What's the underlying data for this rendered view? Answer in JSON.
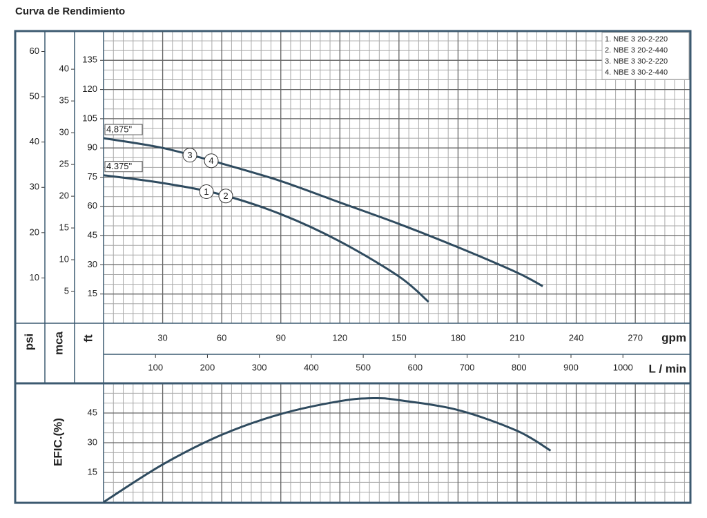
{
  "title": "Curva de Rendimiento",
  "chart_data": [
    {
      "type": "line",
      "xlim": [
        0,
        298
      ],
      "xticks": [
        30,
        60,
        90,
        120,
        150,
        180,
        210,
        240,
        270
      ],
      "x_label": "gpm",
      "x2lim": [
        0,
        1130
      ],
      "x2ticks": [
        100,
        200,
        300,
        400,
        500,
        600,
        700,
        800,
        900,
        1000
      ],
      "x2_label": "L / min",
      "ylim": [
        0,
        150
      ],
      "yticks": [
        15,
        30,
        45,
        60,
        75,
        90,
        105,
        120,
        135
      ],
      "y_label": "ft",
      "y2lim": [
        0,
        46
      ],
      "y2ticks": [
        5,
        10,
        15,
        20,
        25,
        30,
        35,
        40
      ],
      "y2_label": "mca",
      "y3lim": [
        0,
        64.5
      ],
      "y3ticks": [
        10,
        20,
        30,
        40,
        50,
        60
      ],
      "y3_label": "psi",
      "grid": true,
      "series": [
        {
          "name": "4,875\"",
          "markers": [
            "3",
            "4"
          ],
          "color": "#2f4b5f",
          "x": [
            0,
            30,
            60,
            90,
            120,
            150,
            180,
            210,
            223
          ],
          "values": [
            95,
            90,
            82,
            73,
            62,
            51,
            39,
            26,
            19
          ]
        },
        {
          "name": "4.375\"",
          "markers": [
            "1",
            "2"
          ],
          "color": "#2f4b5f",
          "x": [
            0,
            30,
            60,
            90,
            120,
            150,
            165
          ],
          "values": [
            76,
            72,
            66,
            56,
            42,
            24,
            11
          ]
        }
      ],
      "legend": [
        "1. NBE 3 20-2-220",
        "2. NBE 3 20-2-440",
        "3. NBE 3 30-2-220",
        "4. NBE 3 30-2-440"
      ],
      "legend_position": "upper right"
    },
    {
      "type": "line",
      "y_label": "EFIC.(%)",
      "xlim": [
        0,
        298
      ],
      "ylim": [
        0,
        60
      ],
      "yticks": [
        15,
        30,
        45
      ],
      "grid": true,
      "series": [
        {
          "color": "#2f4b5f",
          "x": [
            0,
            30,
            60,
            90,
            120,
            137,
            150,
            180,
            210,
            227
          ],
          "values": [
            0,
            19,
            34,
            44.5,
            51,
            52.5,
            51.5,
            46.5,
            36,
            26
          ]
        }
      ]
    }
  ]
}
